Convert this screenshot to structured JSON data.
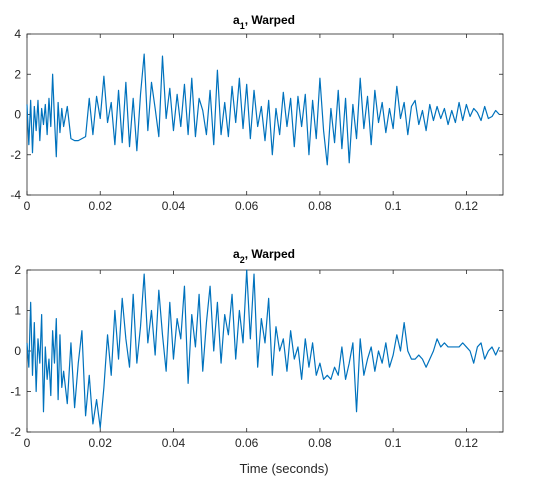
{
  "colors": {
    "line": "#0072BD",
    "axis": "#262626",
    "background": "#ffffff"
  },
  "chart_data": [
    {
      "type": "line",
      "title": "a",
      "title_sub": "1",
      "title_rest": ", Warped",
      "xlabel": "",
      "ylabel": "",
      "xlim": [
        0,
        0.13
      ],
      "ylim": [
        -4,
        4
      ],
      "xticks": [
        0,
        0.02,
        0.04,
        0.06,
        0.08,
        0.1,
        0.12
      ],
      "xtick_labels": [
        "0",
        "0.02",
        "0.04",
        "0.06",
        "0.08",
        "0.1",
        "0.12"
      ],
      "yticks": [
        -4,
        -2,
        0,
        2,
        4
      ],
      "ytick_labels": [
        "-4",
        "-2",
        "0",
        "2",
        "4"
      ],
      "grid": false,
      "series": [
        {
          "x": [
            0,
            0.0005,
            0.001,
            0.0015,
            0.002,
            0.0025,
            0.003,
            0.0035,
            0.004,
            0.0045,
            0.005,
            0.0055,
            0.006,
            0.0065,
            0.007,
            0.0075,
            0.008,
            0.0085,
            0.009,
            0.0095,
            0.01,
            0.011,
            0.012,
            0.013,
            0.014,
            0.015,
            0.016,
            0.017,
            0.018,
            0.019,
            0.02,
            0.021,
            0.022,
            0.023,
            0.024,
            0.025,
            0.026,
            0.027,
            0.028,
            0.029,
            0.03,
            0.031,
            0.032,
            0.033,
            0.034,
            0.035,
            0.036,
            0.037,
            0.038,
            0.039,
            0.04,
            0.041,
            0.042,
            0.043,
            0.044,
            0.045,
            0.046,
            0.047,
            0.048,
            0.049,
            0.05,
            0.051,
            0.052,
            0.053,
            0.054,
            0.055,
            0.056,
            0.057,
            0.058,
            0.059,
            0.06,
            0.061,
            0.062,
            0.063,
            0.064,
            0.065,
            0.066,
            0.067,
            0.068,
            0.069,
            0.07,
            0.071,
            0.072,
            0.073,
            0.074,
            0.075,
            0.076,
            0.077,
            0.078,
            0.079,
            0.08,
            0.081,
            0.082,
            0.083,
            0.084,
            0.085,
            0.086,
            0.087,
            0.088,
            0.089,
            0.09,
            0.091,
            0.092,
            0.093,
            0.094,
            0.095,
            0.096,
            0.097,
            0.098,
            0.099,
            0.1,
            0.101,
            0.102,
            0.103,
            0.104,
            0.105,
            0.106,
            0.107,
            0.108,
            0.109,
            0.11,
            0.111,
            0.112,
            0.113,
            0.114,
            0.115,
            0.116,
            0.117,
            0.118,
            0.119,
            0.12,
            0.121,
            0.122,
            0.123,
            0.124,
            0.125,
            0.126,
            0.127,
            0.128,
            0.129
          ],
          "y": [
            0.5,
            -1.5,
            0.7,
            -1.9,
            0.4,
            -0.8,
            0.7,
            -1.3,
            0.3,
            -0.5,
            0.5,
            -1.0,
            0.8,
            -0.6,
            2.0,
            -0.2,
            -2.1,
            0.6,
            -0.9,
            0.3,
            -0.6,
            0.4,
            -1.2,
            -1.3,
            -1.3,
            -1.2,
            -1.1,
            0.8,
            -1.0,
            0.9,
            -0.2,
            1.9,
            -0.4,
            0.6,
            -1.5,
            1.2,
            -1.4,
            1.6,
            -1.6,
            0.8,
            -1.8,
            1.0,
            3.0,
            -0.8,
            1.6,
            0.3,
            -1.1,
            2.9,
            -0.2,
            1.3,
            -0.8,
            1.0,
            -0.6,
            1.5,
            -1.0,
            1.8,
            -1.1,
            0.8,
            0.2,
            -1.0,
            1.2,
            -1.5,
            2.2,
            -1.0,
            0.6,
            -1.1,
            1.4,
            -0.4,
            1.8,
            -0.7,
            1.5,
            -1.2,
            1.2,
            -0.6,
            0.4,
            -1.3,
            0.7,
            -2.0,
            0.3,
            -1.0,
            1.1,
            -0.6,
            0.8,
            -1.6,
            0.9,
            -0.6,
            1.0,
            -2.0,
            0.7,
            -1.2,
            1.8,
            -0.8,
            -2.5,
            0.3,
            -1.4,
            1.2,
            -1.7,
            0.8,
            -2.4,
            0.5,
            -1.2,
            1.8,
            -0.7,
            0.9,
            -1.5,
            1.2,
            -0.4,
            0.6,
            -0.9,
            0.3,
            -0.7,
            1.4,
            -0.2,
            0.6,
            -1.0,
            0.4,
            0.7,
            -0.5,
            0.2,
            -0.8,
            0.5,
            -0.3,
            0.4,
            -0.2,
            0.3,
            -0.5,
            0.2,
            -0.4,
            0.6,
            -0.3,
            0.5,
            -0.1,
            0.3,
            0.1,
            -0.3,
            0.4,
            -0.2,
            -0.1,
            0.2,
            0.0
          ]
        }
      ]
    },
    {
      "type": "line",
      "title": "a",
      "title_sub": "2",
      "title_rest": ", Warped",
      "xlabel": "Time (seconds)",
      "ylabel": "",
      "xlim": [
        0,
        0.13
      ],
      "ylim": [
        -2,
        2
      ],
      "xticks": [
        0,
        0.02,
        0.04,
        0.06,
        0.08,
        0.1,
        0.12
      ],
      "xtick_labels": [
        "0",
        "0.02",
        "0.04",
        "0.06",
        "0.08",
        "0.1",
        "0.12"
      ],
      "yticks": [
        -2,
        -1,
        0,
        1,
        2
      ],
      "ytick_labels": [
        "-2",
        "-1",
        "0",
        "1",
        "2"
      ],
      "grid": false,
      "series": [
        {
          "x": [
            0,
            0.0005,
            0.001,
            0.0015,
            0.002,
            0.0025,
            0.003,
            0.0035,
            0.004,
            0.0045,
            0.005,
            0.0055,
            0.006,
            0.0065,
            0.007,
            0.0075,
            0.008,
            0.0085,
            0.009,
            0.0095,
            0.01,
            0.011,
            0.012,
            0.013,
            0.014,
            0.015,
            0.016,
            0.017,
            0.018,
            0.019,
            0.02,
            0.021,
            0.022,
            0.023,
            0.024,
            0.025,
            0.026,
            0.027,
            0.028,
            0.029,
            0.03,
            0.031,
            0.032,
            0.033,
            0.034,
            0.035,
            0.036,
            0.037,
            0.038,
            0.039,
            0.04,
            0.041,
            0.042,
            0.043,
            0.044,
            0.045,
            0.046,
            0.047,
            0.048,
            0.049,
            0.05,
            0.051,
            0.052,
            0.053,
            0.054,
            0.055,
            0.056,
            0.057,
            0.058,
            0.059,
            0.06,
            0.061,
            0.062,
            0.063,
            0.064,
            0.065,
            0.066,
            0.067,
            0.068,
            0.069,
            0.07,
            0.071,
            0.072,
            0.073,
            0.074,
            0.075,
            0.076,
            0.077,
            0.078,
            0.079,
            0.08,
            0.081,
            0.082,
            0.083,
            0.084,
            0.085,
            0.086,
            0.087,
            0.088,
            0.089,
            0.09,
            0.091,
            0.092,
            0.093,
            0.094,
            0.095,
            0.096,
            0.097,
            0.098,
            0.099,
            0.1,
            0.101,
            0.102,
            0.103,
            0.104,
            0.105,
            0.106,
            0.107,
            0.108,
            0.109,
            0.11,
            0.111,
            0.112,
            0.113,
            0.114,
            0.115,
            0.116,
            0.117,
            0.118,
            0.119,
            0.12,
            0.121,
            0.122,
            0.123,
            0.124,
            0.125,
            0.126,
            0.127,
            0.128,
            0.129
          ],
          "y": [
            0.2,
            -0.4,
            1.2,
            -0.6,
            0.7,
            -1.0,
            0.3,
            -0.3,
            0.9,
            -1.5,
            0.1,
            -0.7,
            -0.2,
            -1.1,
            0.5,
            -0.3,
            0.8,
            -1.2,
            0.4,
            -0.9,
            -0.5,
            -1.3,
            0.2,
            -1.4,
            -0.3,
            0.5,
            -1.6,
            -0.6,
            -1.8,
            -1.2,
            -1.9,
            -0.9,
            0.4,
            -0.6,
            1.0,
            -0.2,
            1.3,
            0.3,
            -0.4,
            1.4,
            -0.3,
            0.6,
            1.9,
            0.2,
            1.0,
            -0.1,
            1.5,
            0.4,
            -0.5,
            1.2,
            -0.2,
            0.8,
            0.3,
            1.6,
            -0.8,
            0.9,
            0.1,
            1.4,
            -0.5,
            0.7,
            1.6,
            0.0,
            1.2,
            -0.3,
            0.9,
            0.4,
            1.4,
            -0.2,
            1.0,
            0.2,
            2.0,
            0.3,
            1.9,
            -0.4,
            0.8,
            0.2,
            1.3,
            -0.6,
            0.6,
            0.0,
            0.3,
            -0.5,
            0.5,
            -0.2,
            0.1,
            -0.7,
            0.3,
            -0.4,
            0.2,
            -0.6,
            -0.3,
            -0.7,
            -0.6,
            -0.7,
            -0.4,
            -0.6,
            0.1,
            -0.7,
            -0.3,
            0.2,
            -1.5,
            0.3,
            -0.6,
            -0.2,
            0.1,
            -0.5,
            0.0,
            -0.3,
            0.2,
            -0.4,
            -0.1,
            0.4,
            0.0,
            0.7,
            0.0,
            -0.2,
            -0.2,
            -0.1,
            -0.2,
            -0.4,
            -0.2,
            0.0,
            0.3,
            0.1,
            0.2,
            0.1,
            0.1,
            0.1,
            0.1,
            0.2,
            0.1,
            0.0,
            -0.3,
            0.1,
            0.2,
            -0.2,
            0.0,
            0.1,
            -0.1,
            0.1
          ]
        }
      ]
    }
  ]
}
